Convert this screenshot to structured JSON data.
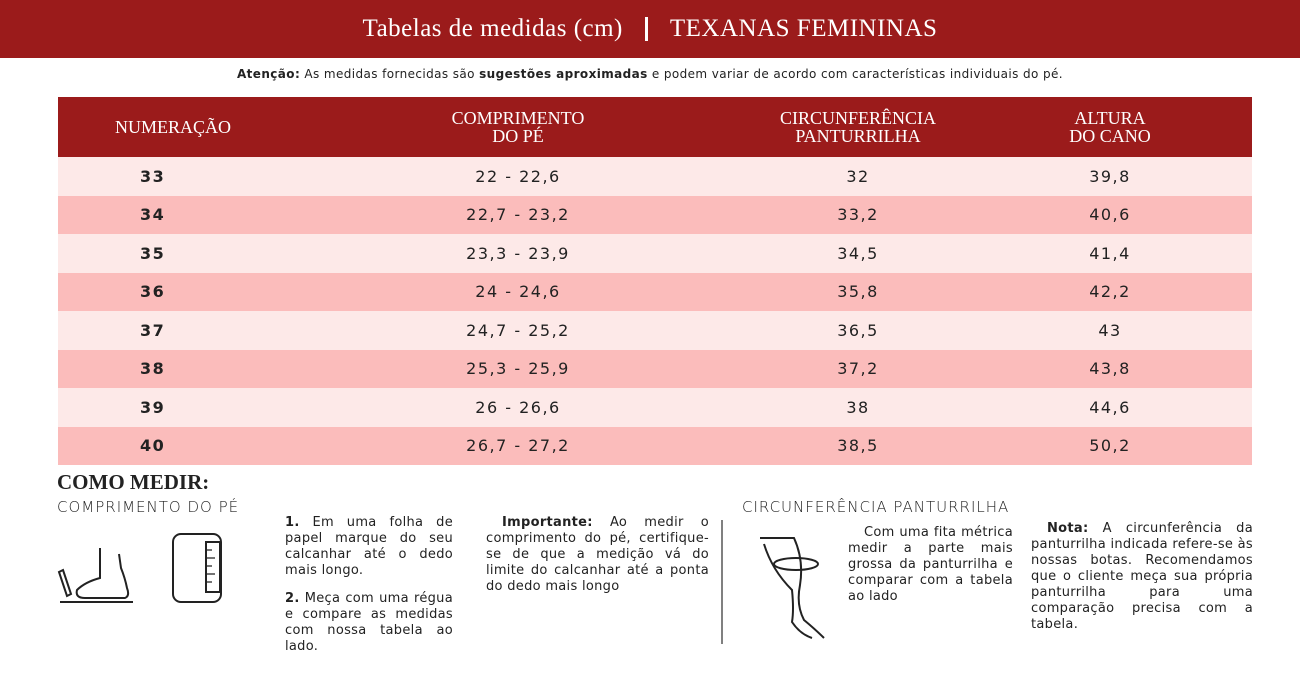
{
  "header": {
    "title": "Tabelas de medidas (cm)",
    "subtitle": "TEXANAS FEMININAS"
  },
  "notice": {
    "label": "Atenção:",
    "text_1": "As medidas fornecidas são",
    "emphasis": "sugestões aproximadas",
    "text_2": "e podem variar de acordo com características individuais do pé."
  },
  "table": {
    "headers": [
      [
        "NUMERAÇÃO"
      ],
      [
        "COMPRIMENTO",
        "DO PÉ"
      ],
      [
        "CIRCUNFERÊNCIA",
        "PANTURRILHA"
      ],
      [
        "ALTURA",
        "DO CANO"
      ]
    ],
    "rows": [
      [
        "33",
        "22 - 22,6",
        "32",
        "39,8"
      ],
      [
        "34",
        "22,7 - 23,2",
        "33,2",
        "40,6"
      ],
      [
        "35",
        "23,3 - 23,9",
        "34,5",
        "41,4"
      ],
      [
        "36",
        "24 - 24,6",
        "35,8",
        "42,2"
      ],
      [
        "37",
        "24,7 - 25,2",
        "36,5",
        "43"
      ],
      [
        "38",
        "25,3 - 25,9",
        "37,2",
        "43,8"
      ],
      [
        "39",
        "26 - 26,6",
        "38",
        "44,6"
      ],
      [
        "40",
        "26,7 - 27,2",
        "38,5",
        "50,2"
      ]
    ]
  },
  "how_to": {
    "title": "COMO MEDIR:",
    "foot": {
      "title": "COMPRIMENTO DO PÉ",
      "steps": [
        {
          "number": "1.",
          "text": "Em uma folha de papel marque do seu calcanhar até o dedo mais longo."
        },
        {
          "number": "2.",
          "text": "Meça com uma régua e compare as medidas com nossa tabela ao lado."
        }
      ],
      "note": {
        "label": "Importante:",
        "text": "Ao medir o comprimento do pé, certifique-se de que a medição vá do limite do calcanhar até a ponta do dedo mais longo"
      }
    },
    "calf": {
      "title": "CIRCUNFERÊNCIA PANTURRILHA",
      "text": "Com uma fita métrica medir a parte mais grossa da panturrilha e comparar com a tabela ao lado",
      "note": {
        "label": "Nota:",
        "text": "A circunferência da panturrilha indicada refere-se às nossas botas. Recomendamos que o cliente meça sua própria panturrilha para uma comparação precisa com a tabela."
      }
    }
  }
}
